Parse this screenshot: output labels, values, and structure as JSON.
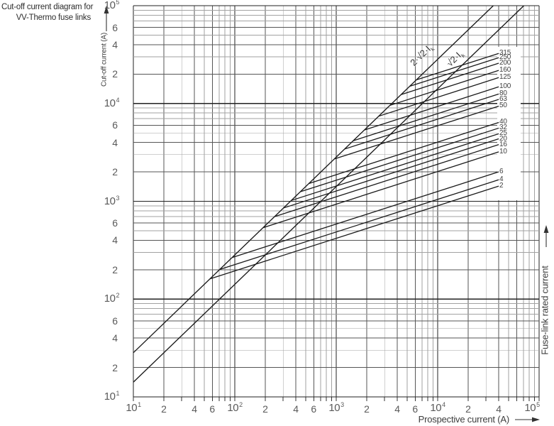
{
  "title": {
    "line1": "Cut-off current diagram for",
    "line2": "VV-Thermo fuse links"
  },
  "colors": {
    "curve": "#1a1a1a",
    "grid_major": "#222222",
    "grid_mid": "#565656",
    "grid_minor": "#a2a2a2",
    "tick": "#333333",
    "text": "#3d3d3d",
    "text_muted": "#5a5a5a"
  },
  "chart_data": {
    "type": "line",
    "title": "Cut-off current diagram for VV-Thermo fuse links",
    "xlabel": "Prospective current (A)",
    "ylabel": "Cut-off current (A)",
    "right_axis_label": "Fuse-link rated current",
    "x_scale": "log",
    "y_scale": "log",
    "xlim": [
      10,
      100000
    ],
    "ylim": [
      10,
      100000
    ],
    "grid": "log-log, minor lines 2-9 each decade",
    "legend_position": "right-inline-labels",
    "x_axis": {
      "decade_exponents": [
        1,
        2,
        3,
        4,
        5
      ],
      "minor_tick_labels": [
        2,
        4,
        6
      ],
      "last_decade_minor_labels": [
        2,
        4
      ]
    },
    "y_axis": {
      "decade_exponents": [
        5,
        4,
        3,
        2,
        1
      ],
      "minor_tick_labels": [
        6,
        4,
        2
      ]
    },
    "reference_lines": [
      {
        "name": "asymmetrical-peak",
        "label": {
          "text": "2·√2·I",
          "sub": "k"
        },
        "points": [
          [
            10,
            28.28
          ],
          [
            35355,
            100000
          ]
        ],
        "label_center": [
          595,
          78
        ],
        "label_angle_deg": -44
      },
      {
        "name": "symmetrical-peak",
        "label": {
          "text": "√2·I",
          "sub": "k"
        },
        "points": [
          [
            10,
            14.14
          ],
          [
            70711,
            100000
          ]
        ],
        "label_center": [
          642,
          83
        ],
        "label_angle_deg": -44
      }
    ],
    "series_note": "Each fuse-link curve is a straight line in log-log space (slope 1/3) from its branch point on the 2·√2·Ik line to prospective current 40 kA.",
    "series": [
      {
        "rating": "315",
        "branch": [
          6160,
          17420
        ],
        "end": [
          40000,
          32500
        ]
      },
      {
        "rating": "250",
        "branch": [
          5300,
          14990
        ],
        "end": [
          40000,
          29400
        ]
      },
      {
        "rating": "200",
        "branch": [
          4360,
          12330
        ],
        "end": [
          40000,
          25800
        ]
      },
      {
        "rating": "160",
        "branch": [
          3380,
          9560
        ],
        "end": [
          40000,
          21800
        ]
      },
      {
        "rating": "125",
        "branch": [
          2620,
          7410
        ],
        "end": [
          40000,
          18400
        ]
      },
      {
        "rating": "100",
        "branch": [
          1890,
          5350
        ],
        "end": [
          40000,
          14800
        ]
      },
      {
        "rating": "80",
        "branch": [
          1470,
          4160
        ],
        "end": [
          40000,
          12500
        ]
      },
      {
        "rating": "63",
        "branch": [
          1210,
          3420
        ],
        "end": [
          40000,
          11000
        ]
      },
      {
        "rating": "50",
        "branch": [
          958,
          2710
        ],
        "end": [
          40000,
          9400
        ]
      },
      {
        "rating": "40",
        "branch": [
          538,
          1520
        ],
        "end": [
          40000,
          6400
        ]
      },
      {
        "rating": "32",
        "branch": [
          441,
          1250
        ],
        "end": [
          40000,
          5600
        ]
      },
      {
        "rating": "25",
        "branch": [
          361,
          1020
        ],
        "end": [
          40000,
          4900
        ]
      },
      {
        "rating": "20",
        "branch": [
          302,
          854
        ],
        "end": [
          40000,
          4350
        ]
      },
      {
        "rating": "16",
        "branch": [
          246,
          696
        ],
        "end": [
          40000,
          3800
        ]
      },
      {
        "rating": "10",
        "branch": [
          190,
          537
        ],
        "end": [
          40000,
          3200
        ]
      },
      {
        "rating": "6",
        "branch": [
          94,
          266
        ],
        "end": [
          40000,
          2000
        ]
      },
      {
        "rating": "4",
        "branch": [
          71,
          201
        ],
        "end": [
          40000,
          1660
        ]
      },
      {
        "rating": "2",
        "branch": [
          57,
          161
        ],
        "end": [
          40000,
          1430
        ]
      }
    ]
  }
}
